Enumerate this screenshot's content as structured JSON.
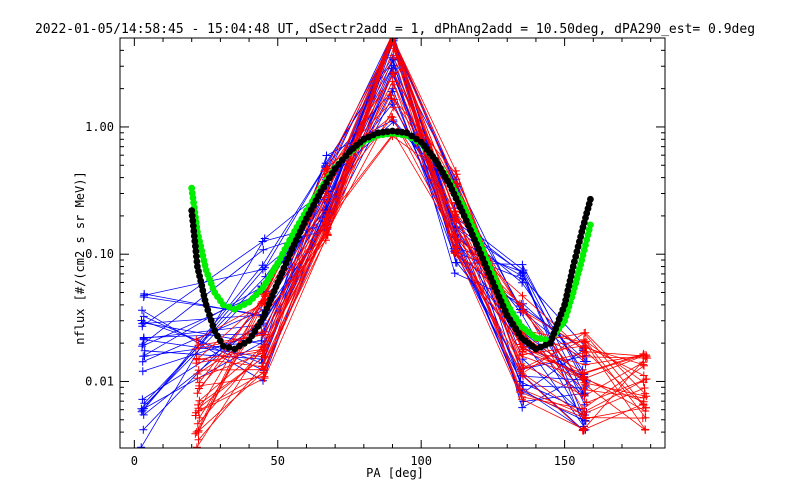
{
  "chart_data": {
    "type": "scatter",
    "title": "2022-01-05/14:58:45 - 15:04:48 UT, dSectr2add = 1, dPhAng2add = 10.50deg, dPA290_est=   0.9deg",
    "xlabel": "PA [deg]",
    "ylabel": "nflux [#/(cm2 s sr MeV)]",
    "x_scale": "linear",
    "y_scale": "log",
    "xlim": [
      -5,
      185
    ],
    "ylim": [
      0.003,
      5.0
    ],
    "x_ticks": [
      0,
      50,
      100,
      150
    ],
    "x_tick_labels": [
      "0",
      "50",
      "100",
      "150"
    ],
    "y_ticks": [
      0.01,
      0.1,
      1.0
    ],
    "y_tick_labels": [
      "0.01",
      "0.10",
      "1.00"
    ],
    "grid": false,
    "colors": {
      "blue": "#0000ff",
      "red": "#ff0000",
      "green": "#00ee00",
      "black": "#000000",
      "axes": "#000000"
    },
    "series": [
      {
        "color": "blue",
        "style": "thin lines with plus markers (many spectra)",
        "x_samples": [
          3,
          45,
          67,
          90,
          112,
          135,
          157
        ],
        "y_range_low": [
          0.003,
          0.009,
          0.15,
          0.8,
          0.07,
          0.006,
          0.004
        ],
        "y_range_high": [
          0.05,
          0.14,
          0.6,
          5.0,
          0.4,
          0.09,
          0.02
        ]
      },
      {
        "color": "red",
        "style": "thin lines with plus markers (many spectra)",
        "x_samples": [
          22,
          45,
          67,
          90,
          112,
          135,
          157,
          178
        ],
        "y_range_low": [
          0.003,
          0.01,
          0.12,
          0.8,
          0.1,
          0.007,
          0.004,
          0.004
        ],
        "y_range_high": [
          0.025,
          0.05,
          0.5,
          5.0,
          0.5,
          0.05,
          0.025,
          0.018
        ]
      },
      {
        "color": "green",
        "style": "thick dotted fit curve",
        "x": [
          20,
          22,
          25,
          28,
          31,
          35,
          40,
          45,
          50,
          55,
          60,
          65,
          70,
          75,
          80,
          85,
          90,
          95,
          100,
          105,
          110,
          115,
          120,
          125,
          130,
          135,
          140,
          145,
          150,
          153,
          156,
          159
        ],
        "y": [
          0.33,
          0.15,
          0.075,
          0.05,
          0.04,
          0.037,
          0.042,
          0.055,
          0.085,
          0.14,
          0.22,
          0.33,
          0.48,
          0.63,
          0.77,
          0.86,
          0.89,
          0.86,
          0.74,
          0.55,
          0.37,
          0.23,
          0.13,
          0.07,
          0.04,
          0.027,
          0.022,
          0.021,
          0.03,
          0.05,
          0.09,
          0.17
        ]
      },
      {
        "color": "black",
        "style": "thick dotted fit curve",
        "x": [
          20,
          22,
          25,
          28,
          31,
          35,
          40,
          45,
          50,
          55,
          60,
          65,
          70,
          75,
          80,
          85,
          90,
          95,
          100,
          105,
          110,
          115,
          120,
          125,
          130,
          135,
          140,
          145,
          150,
          153,
          156,
          159
        ],
        "y": [
          0.22,
          0.08,
          0.04,
          0.025,
          0.019,
          0.018,
          0.021,
          0.032,
          0.06,
          0.11,
          0.19,
          0.31,
          0.47,
          0.64,
          0.8,
          0.9,
          0.93,
          0.9,
          0.76,
          0.55,
          0.35,
          0.2,
          0.11,
          0.06,
          0.033,
          0.022,
          0.018,
          0.02,
          0.04,
          0.08,
          0.15,
          0.27
        ]
      }
    ]
  }
}
